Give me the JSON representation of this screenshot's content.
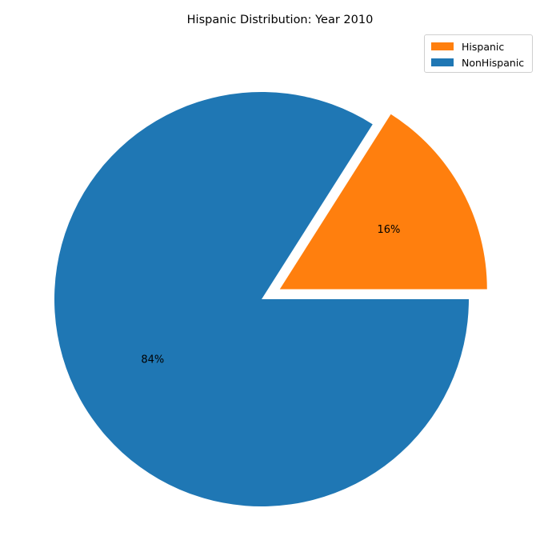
{
  "chart_data": {
    "type": "pie",
    "title": "Hispanic Distribution: Year 2010",
    "slices": [
      {
        "name": "Hispanic",
        "value": 16,
        "label": "16%",
        "color": "#ff7f0e",
        "exploded": true
      },
      {
        "name": "NonHispanic",
        "value": 84,
        "label": "84%",
        "color": "#1f77b4",
        "exploded": false
      }
    ],
    "start_angle_deg": 0,
    "direction": "counterclockwise",
    "legend_position": "top-right"
  }
}
